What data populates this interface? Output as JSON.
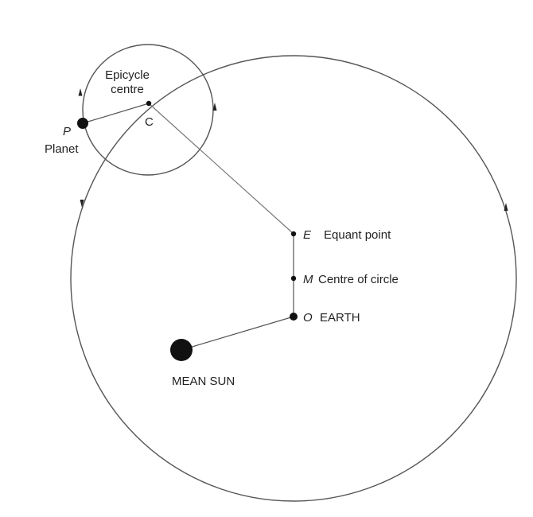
{
  "colors": {
    "line": "#555555",
    "dot": "#111111",
    "text": "#222222",
    "background": "#ffffff"
  },
  "labels": {
    "epicycle_line1": "Epicycle",
    "epicycle_line2": "centre",
    "c_letter": "C",
    "p_letter": "P",
    "planet": "Planet",
    "e_letter": "E",
    "equant": "Equant point",
    "m_letter": "M",
    "centre_of_circle": "Centre of circle",
    "o_letter": "O",
    "earth": "EARTH",
    "mean_sun": "MEAN SUN"
  }
}
